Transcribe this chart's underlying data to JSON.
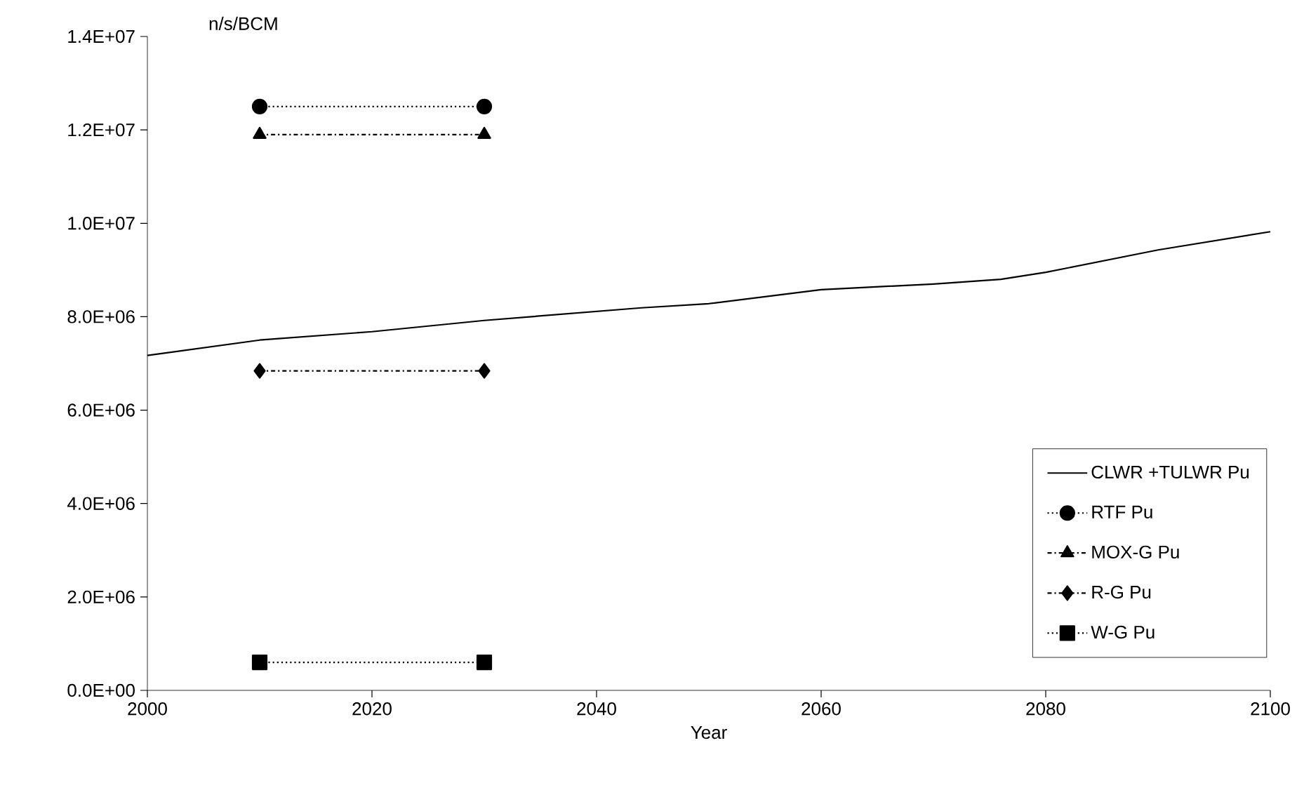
{
  "chart_data": {
    "type": "line",
    "xlabel": "Year",
    "ylabel": "n/s/BCM",
    "xlim": [
      2000,
      2100
    ],
    "xticks": [
      2000,
      2020,
      2040,
      2060,
      2080,
      2100
    ],
    "ylim": [
      0,
      14000000
    ],
    "yticks": [
      {
        "value": 0,
        "label": "0.0E+00"
      },
      {
        "value": 2000000,
        "label": "2.0E+06"
      },
      {
        "value": 4000000,
        "label": "4.0E+06"
      },
      {
        "value": 6000000,
        "label": "6.0E+06"
      },
      {
        "value": 8000000,
        "label": "8.0E+06"
      },
      {
        "value": 10000000,
        "label": "1.0E+07"
      },
      {
        "value": 12000000,
        "label": "1.2E+07"
      },
      {
        "value": 14000000,
        "label": "1.4E+07"
      }
    ],
    "grid": false,
    "legend": "bottom right",
    "series": [
      {
        "name": "CLWR  +TULWR Pu",
        "color": "#000000",
        "marker": "none",
        "line_style": "solid",
        "x": [
          2000,
          2010,
          2020,
          2030,
          2044,
          2050,
          2060,
          2070,
          2076,
          2080,
          2090,
          2100
        ],
        "values": [
          7170000,
          7500000,
          7680000,
          7920000,
          8190000,
          8280000,
          8580000,
          8700000,
          8800000,
          8950000,
          9430000,
          9820000
        ]
      },
      {
        "name": "RTF Pu",
        "color": "#000000",
        "marker": "circle",
        "line_style": "dotted",
        "x": [
          2010,
          2030
        ],
        "values": [
          12500000,
          12500000
        ]
      },
      {
        "name": "MOX-G Pu",
        "color": "#000000",
        "marker": "triangle",
        "line_style": "dashed",
        "x": [
          2010,
          2030
        ],
        "values": [
          11900000,
          11900000
        ]
      },
      {
        "name": "R-G Pu",
        "color": "#000000",
        "marker": "diamond",
        "line_style": "dashed",
        "x": [
          2010,
          2030
        ],
        "values": [
          6840000,
          6840000
        ]
      },
      {
        "name": "W-G Pu",
        "color": "#000000",
        "marker": "square",
        "line_style": "dotted",
        "x": [
          2010,
          2030
        ],
        "values": [
          600000,
          600000
        ]
      }
    ]
  }
}
